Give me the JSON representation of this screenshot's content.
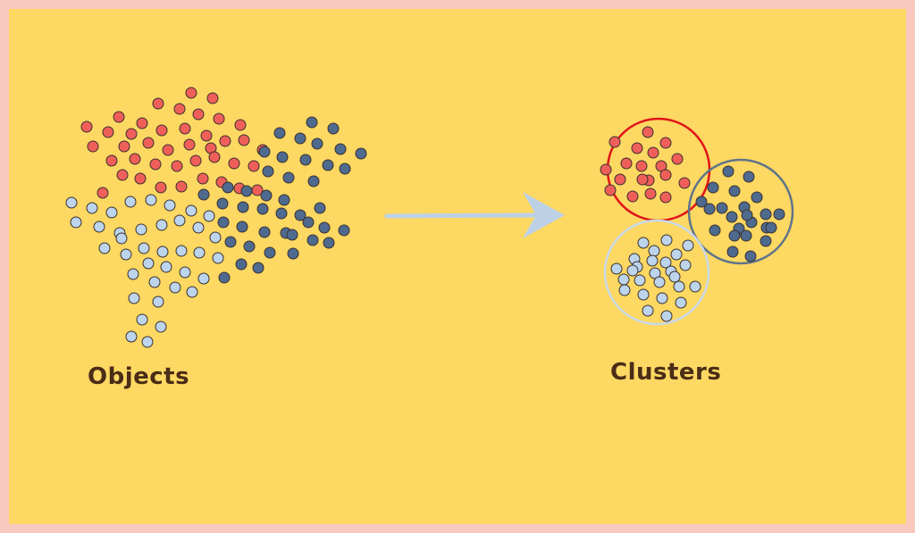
{
  "labels": {
    "objects": "Objects",
    "clusters": "Clusters"
  },
  "colors": {
    "background": "#fdd862",
    "border": "#f9c9c0",
    "red": "#ef5f5a",
    "dark_blue": "#4e6a8e",
    "light_blue": "#bcd4ec",
    "arrow": "#bcd1e6",
    "red_ring": "#e0141a",
    "dark_ring": "#5f7489",
    "light_ring": "#c8d8e8",
    "text": "#4a2c17"
  }
}
